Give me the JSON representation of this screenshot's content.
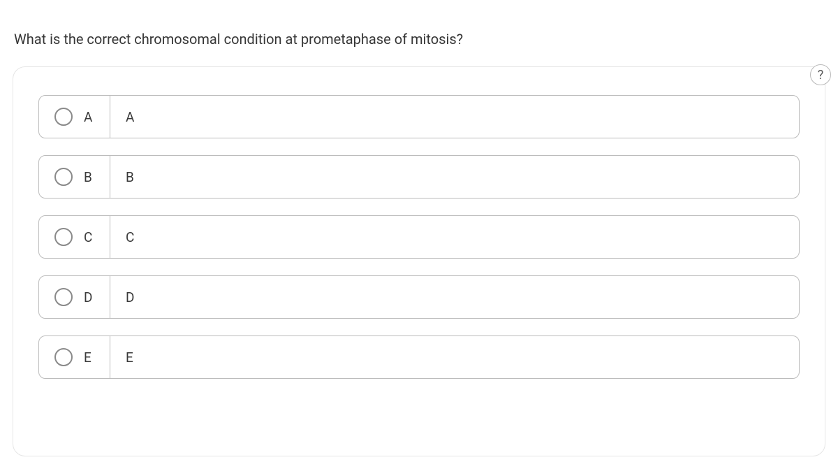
{
  "question": {
    "text": "What is the correct chromosomal condition at prometaphase of mitosis?"
  },
  "help": {
    "label": "?"
  },
  "options": [
    {
      "letter": "A",
      "text": "A"
    },
    {
      "letter": "B",
      "text": "B"
    },
    {
      "letter": "C",
      "text": "C"
    },
    {
      "letter": "D",
      "text": "D"
    },
    {
      "letter": "E",
      "text": "E"
    }
  ],
  "colors": {
    "border": "#bcbcbc",
    "radio_border": "#8a8a8a",
    "text": "#363636",
    "card_border": "#e5e5e5",
    "background": "#ffffff"
  },
  "typography": {
    "question_fontsize": 20,
    "option_fontsize": 19
  }
}
